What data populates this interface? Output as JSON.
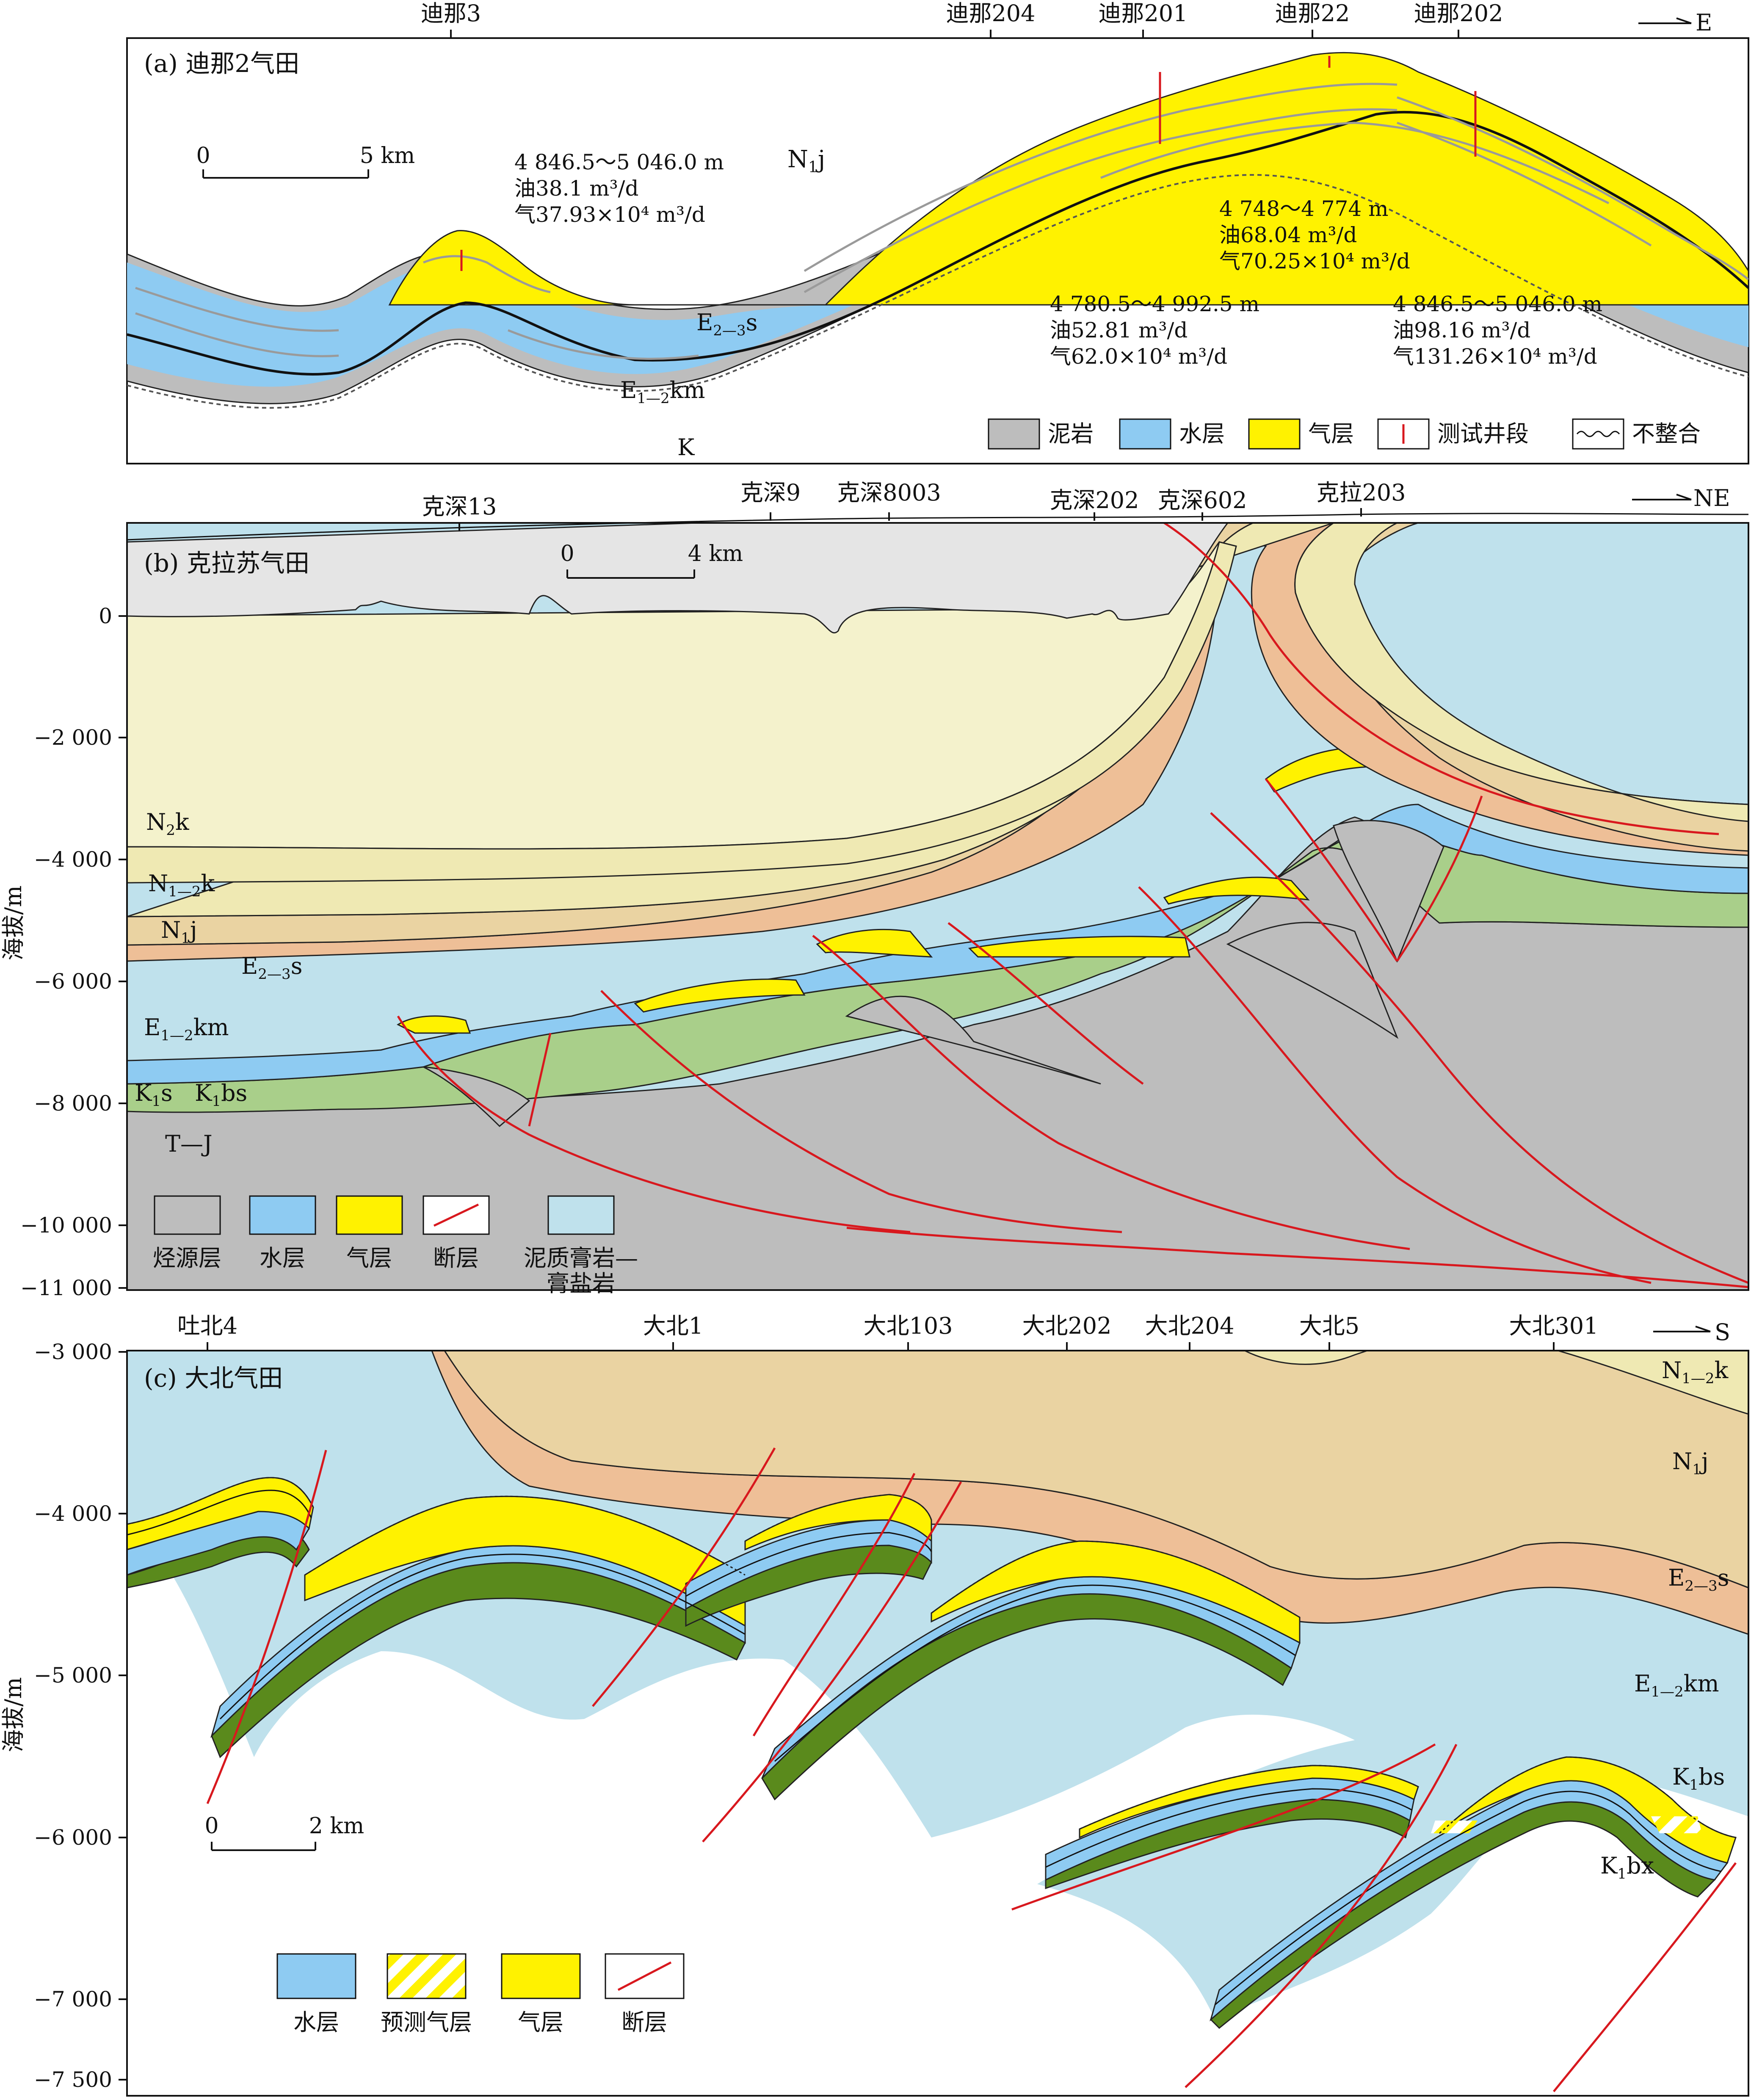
{
  "panel_a": {
    "title": "(a) 迪那2气田",
    "direction": "E",
    "wells": [
      "迪那3",
      "迪那204",
      "迪那201",
      "迪那22",
      "迪那202"
    ],
    "scale_0": "0",
    "scale_end": "5 km",
    "formations": {
      "n1j_main": "N",
      "n1j_sub": "1",
      "n1j_tail": "j",
      "e23s": "E",
      "e23s_sub": "2—3",
      "e23s_tail": "s",
      "e12km": "E",
      "e12km_sub": "1—2",
      "e12km_tail": "km",
      "k": "K"
    },
    "tests": [
      {
        "depth": "4 846.5～5 046.0 m",
        "oil": "油38.1 m³/d",
        "gas": "气37.93×10⁴ m³/d"
      },
      {
        "depth": "4 748～4 774 m",
        "oil": "油68.04 m³/d",
        "gas": "气70.25×10⁴ m³/d"
      },
      {
        "depth": "4 780.5～4 992.5 m",
        "oil": "油52.81 m³/d",
        "gas": "气62.0×10⁴ m³/d"
      },
      {
        "depth": "4 846.5～5 046.0 m",
        "oil": "油98.16 m³/d",
        "gas": "气131.26×10⁴ m³/d"
      }
    ],
    "legend": [
      "泥岩",
      "水层",
      "气层",
      "测试井段",
      "不整合"
    ]
  },
  "panel_b": {
    "title": "(b) 克拉苏气田",
    "direction": "NE",
    "wells": [
      "克深13",
      "克深9",
      "克深8003",
      "克深202",
      "克深602",
      "克拉203"
    ],
    "scale_0": "0",
    "scale_end": "4 km",
    "y_ticks": [
      "0",
      "−2 000",
      "−4 000",
      "−6 000",
      "−8 000",
      "−10 000",
      "−11 000"
    ],
    "y_label": "海拔/m",
    "formations": {
      "n2k": "N",
      "n2k_sub": "2",
      "n2k_tail": "k",
      "n12k": "N",
      "n12k_sub": "1—2",
      "n12k_tail": "k",
      "n1j": "N",
      "n1j_sub": "1",
      "n1j_tail": "j",
      "e23s": "E",
      "e23s_sub": "2—3",
      "e23s_tail": "s",
      "e12km": "E",
      "e12km_sub": "1—2",
      "e12km_tail": "km",
      "k1s": "K",
      "k1s_sub": "1",
      "k1s_tail": "s",
      "k1bs": "K",
      "k1bs_sub": "1",
      "k1bs_tail": "bs",
      "tj": "T—J"
    },
    "legend": [
      "烃源层",
      "水层",
      "气层",
      "断层",
      "泥质膏岩—",
      "膏盐岩"
    ]
  },
  "panel_c": {
    "title": "(c) 大北气田",
    "direction": "S",
    "wells": [
      "吐北4",
      "大北1",
      "大北103",
      "大北202",
      "大北204",
      "大北5",
      "大北301"
    ],
    "scale_0": "0",
    "scale_end": "2 km",
    "y_ticks": [
      "−3 000",
      "−4 000",
      "−5 000",
      "−6 000",
      "−7 000",
      "−7 500"
    ],
    "y_label": "海拔/m",
    "formations": {
      "n12k": "N",
      "n12k_sub": "1—2",
      "n12k_tail": "k",
      "n1j": "N",
      "n1j_sub": "1",
      "n1j_tail": "j",
      "e23s": "E",
      "e23s_sub": "2—3",
      "e23s_tail": "s",
      "e12km": "E",
      "e12km_sub": "1—2",
      "e12km_tail": "km",
      "k1bs": "K",
      "k1bs_sub": "1",
      "k1bs_tail": "bs",
      "k1bx": "K",
      "k1bx_sub": "1",
      "k1bx_tail": "bx"
    },
    "legend": [
      "水层",
      "预测气层",
      "气层",
      "断层"
    ]
  },
  "colors": {
    "mudstone": "#bdbdbd",
    "water": "#8ecbf2",
    "gas": "#fff200",
    "fault": "#d8181e",
    "salt": "#bfe1ec",
    "n2k": "#f4f2cc",
    "n12k": "#efe9b3",
    "n1j": "#ead3a2",
    "e23s": "#eebf97",
    "k1s": "#a9cf8a",
    "k1bx": "#5a8a1c",
    "cover": "#e5e5e5"
  }
}
